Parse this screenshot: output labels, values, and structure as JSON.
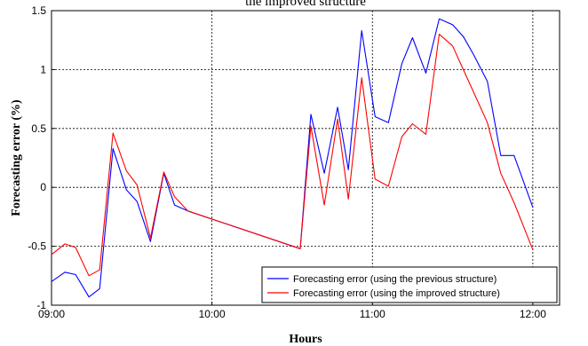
{
  "chart_data": {
    "type": "line",
    "title": "the improved structure",
    "xlabel": "Hours",
    "ylabel": "Forecasting error (%)",
    "xlim": [
      "09:00",
      "12:10"
    ],
    "ylim": [
      -1,
      1.5
    ],
    "xticks": [
      "09:00",
      "10:00",
      "11:00",
      "12:00"
    ],
    "yticks": [
      "-1",
      "-0.5",
      "0",
      "0.5",
      "1",
      "1.5"
    ],
    "grid": true,
    "legend_position": "bottom-right",
    "series": [
      {
        "name": "Forecasting error (using the previous structure)",
        "color": "#0000ff",
        "x": [
          "09:00",
          "09:05",
          "09:09",
          "09:14",
          "09:18",
          "09:23",
          "09:28",
          "09:32",
          "09:37",
          "09:42",
          "09:46",
          "09:51",
          "10:33",
          "10:37",
          "10:42",
          "10:47",
          "10:51",
          "10:56",
          "11:01",
          "11:06",
          "11:11",
          "11:15",
          "11:20",
          "11:25",
          "11:30",
          "11:34",
          "11:38",
          "11:43",
          "11:48",
          "11:53",
          "12:00"
        ],
        "y": [
          -0.8,
          -0.72,
          -0.74,
          -0.93,
          -0.86,
          0.33,
          -0.02,
          -0.12,
          -0.46,
          0.12,
          -0.15,
          -0.2,
          -0.52,
          0.62,
          0.12,
          0.68,
          0.15,
          1.33,
          0.6,
          0.55,
          1.05,
          1.27,
          0.97,
          1.43,
          1.38,
          1.28,
          1.12,
          0.9,
          0.27,
          0.27,
          -0.17
        ]
      },
      {
        "name": "Forecasting error (using the improved structure)",
        "color": "#ff0000",
        "x": [
          "09:00",
          "09:05",
          "09:09",
          "09:14",
          "09:18",
          "09:23",
          "09:28",
          "09:32",
          "09:37",
          "09:42",
          "09:46",
          "09:51",
          "10:33",
          "10:37",
          "10:42",
          "10:47",
          "10:51",
          "10:56",
          "11:01",
          "11:06",
          "11:11",
          "11:15",
          "11:20",
          "11:25",
          "11:30",
          "11:34",
          "11:38",
          "11:43",
          "11:48",
          "11:53",
          "12:00"
        ],
        "y": [
          -0.57,
          -0.48,
          -0.51,
          -0.75,
          -0.7,
          0.46,
          0.14,
          0.02,
          -0.43,
          0.13,
          -0.08,
          -0.2,
          -0.52,
          0.52,
          -0.15,
          0.58,
          -0.1,
          0.93,
          0.07,
          0.01,
          0.43,
          0.54,
          0.45,
          1.3,
          1.2,
          1.0,
          0.8,
          0.55,
          0.12,
          -0.13,
          -0.53
        ]
      }
    ]
  }
}
